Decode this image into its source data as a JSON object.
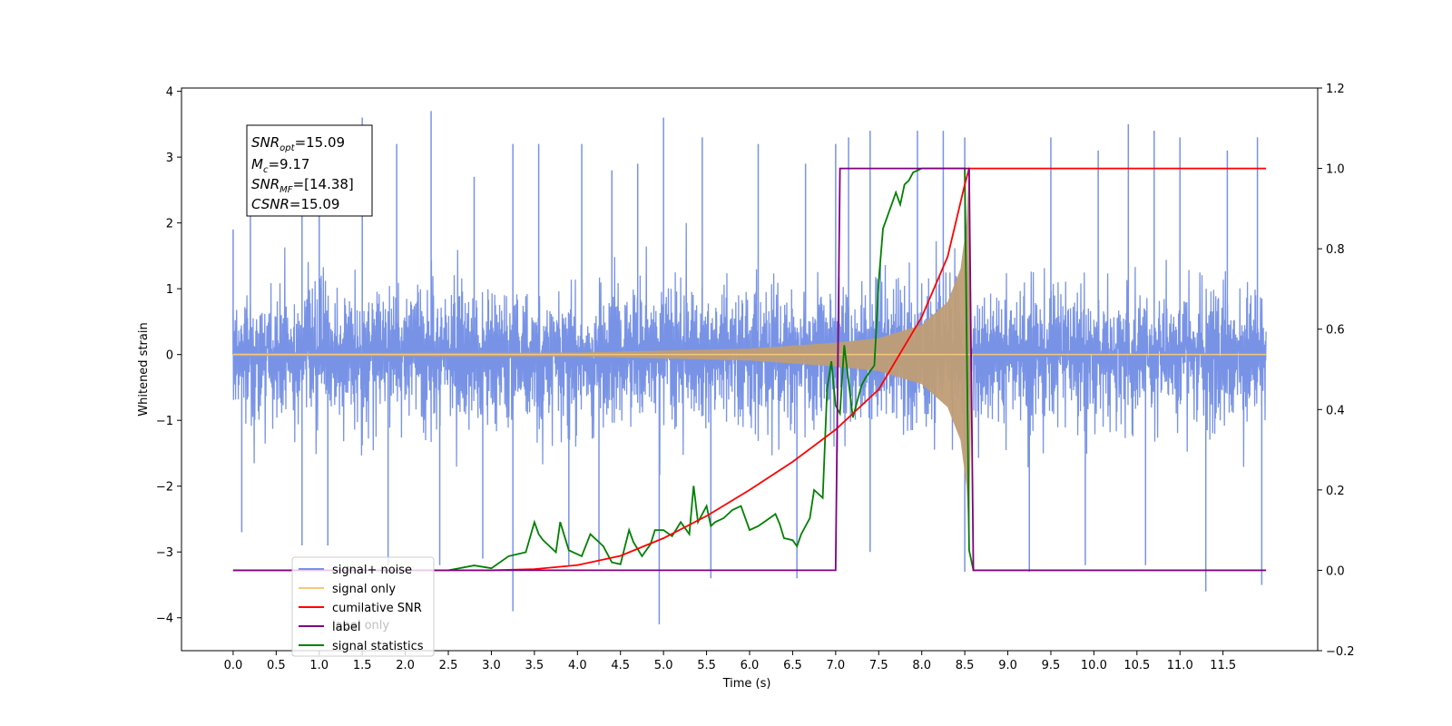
{
  "chart_data": {
    "type": "line",
    "xlabel": "Time (s)",
    "ylabel": "Whitened strain",
    "xlim": [
      -0.6,
      12.6
    ],
    "ylim": [
      -4.5,
      4.05
    ],
    "y2lim": [
      -0.2,
      1.2
    ],
    "x_ticks": [
      "0.0",
      "0.5",
      "1.0",
      "1.5",
      "2.0",
      "2.5",
      "3.0",
      "3.5",
      "4.0",
      "4.5",
      "5.0",
      "5.5",
      "6.0",
      "6.5",
      "7.0",
      "7.5",
      "8.0",
      "8.5",
      "9.0",
      "9.5",
      "10.0",
      "10.5",
      "11.0",
      "11.5"
    ],
    "y_ticks": [
      4,
      3,
      2,
      1,
      0,
      -1,
      -2,
      -3,
      -4
    ],
    "y2_ticks": [
      "1.2",
      "1.0",
      "0.8",
      "0.6",
      "0.4",
      "0.2",
      "0.0",
      "−0.2"
    ],
    "grid": false,
    "legend_position": "lower-left",
    "annotation": {
      "snr_opt": "=15.09",
      "mc": "=9.17",
      "snr_mf": "=[14.38]",
      "csnr": "=15.09"
    },
    "overlapped_text": "label only",
    "series": [
      {
        "name": "signal+ noise",
        "color": "#7893e6",
        "axis": "left",
        "description": "noise band ~±2 with spikes up to ±3.7 over 0–12 s",
        "spikes_top": [
          [
            0.0,
            1.9
          ],
          [
            0.2,
            2.1
          ],
          [
            0.8,
            2.9
          ],
          [
            1.0,
            2.9
          ],
          [
            1.5,
            3.6
          ],
          [
            1.9,
            3.2
          ],
          [
            2.3,
            3.7
          ],
          [
            2.8,
            2.7
          ],
          [
            3.25,
            3.2
          ],
          [
            3.55,
            3.2
          ],
          [
            4.05,
            3.2
          ],
          [
            4.4,
            2.8
          ],
          [
            4.7,
            2.9
          ],
          [
            5.0,
            3.6
          ],
          [
            5.45,
            3.3
          ],
          [
            6.1,
            3.2
          ],
          [
            6.65,
            2.9
          ],
          [
            7.0,
            3.2
          ],
          [
            7.15,
            3.3
          ],
          [
            7.4,
            3.4
          ],
          [
            7.95,
            3.4
          ],
          [
            8.25,
            3.4
          ],
          [
            8.5,
            3.3
          ],
          [
            9.5,
            3.3
          ],
          [
            10.05,
            3.1
          ],
          [
            10.4,
            3.5
          ],
          [
            10.7,
            3.4
          ],
          [
            11.0,
            3.3
          ],
          [
            11.55,
            3.1
          ],
          [
            11.9,
            3.3
          ]
        ],
        "spikes_bottom": [
          [
            0.1,
            -2.7
          ],
          [
            0.8,
            -2.9
          ],
          [
            1.1,
            -2.9
          ],
          [
            1.8,
            -3.2
          ],
          [
            2.4,
            -3.2
          ],
          [
            2.9,
            -3.1
          ],
          [
            3.25,
            -3.9
          ],
          [
            3.9,
            -3.2
          ],
          [
            4.25,
            -3.2
          ],
          [
            4.95,
            -4.1
          ],
          [
            5.55,
            -3.4
          ],
          [
            6.55,
            -3.4
          ],
          [
            7.4,
            -3.0
          ],
          [
            8.5,
            -3.3
          ],
          [
            9.25,
            -3.3
          ],
          [
            9.9,
            -3.2
          ],
          [
            10.6,
            -3.2
          ],
          [
            11.3,
            -3.6
          ],
          [
            11.95,
            -3.5
          ]
        ]
      },
      {
        "name": "signal only",
        "color": "#f5c87a",
        "axis": "left",
        "description": "chirp envelope growing until merger at 8.55 s, then zero",
        "envelope": [
          [
            0.0,
            0.02
          ],
          [
            4.0,
            0.03
          ],
          [
            5.0,
            0.06
          ],
          [
            6.0,
            0.09
          ],
          [
            7.0,
            0.18
          ],
          [
            7.5,
            0.25
          ],
          [
            8.0,
            0.45
          ],
          [
            8.3,
            0.8
          ],
          [
            8.45,
            1.3
          ],
          [
            8.52,
            2.0
          ],
          [
            8.55,
            2.9
          ],
          [
            8.58,
            0.0
          ],
          [
            12.0,
            0.0
          ]
        ]
      },
      {
        "name": "cumilative SNR",
        "color": "#ff0000",
        "axis": "right",
        "x": [
          0.0,
          3.0,
          3.5,
          4.0,
          4.5,
          5.0,
          5.5,
          6.0,
          6.5,
          7.0,
          7.5,
          8.0,
          8.3,
          8.5,
          8.55,
          12.0
        ],
        "y": [
          0.0,
          0.0,
          0.003,
          0.013,
          0.036,
          0.08,
          0.135,
          0.2,
          0.27,
          0.35,
          0.45,
          0.63,
          0.78,
          0.96,
          1.0,
          1.0
        ]
      },
      {
        "name": "label",
        "color": "#800080",
        "axis": "right",
        "x": [
          0.0,
          7.0,
          7.05,
          8.55,
          8.6,
          12.0
        ],
        "y": [
          0.0,
          0.0,
          1.0,
          1.0,
          0.0,
          0.0
        ]
      },
      {
        "name": "signal statistics",
        "color": "#008000",
        "axis": "right",
        "x": [
          0.0,
          2.5,
          2.8,
          3.0,
          3.2,
          3.4,
          3.5,
          3.55,
          3.6,
          3.75,
          3.8,
          3.9,
          4.05,
          4.15,
          4.3,
          4.4,
          4.5,
          4.6,
          4.65,
          4.75,
          4.85,
          4.9,
          5.0,
          5.1,
          5.2,
          5.3,
          5.35,
          5.4,
          5.5,
          5.55,
          5.6,
          5.7,
          5.8,
          5.9,
          6.0,
          6.1,
          6.2,
          6.3,
          6.35,
          6.4,
          6.5,
          6.55,
          6.6,
          6.7,
          6.75,
          6.85,
          6.9,
          6.95,
          7.0,
          7.05,
          7.1,
          7.2,
          7.3,
          7.35,
          7.45,
          7.5,
          7.55,
          7.65,
          7.7,
          7.75,
          7.8,
          7.85,
          7.9,
          8.0,
          8.1,
          8.5,
          8.55,
          8.6,
          12.0
        ],
        "y": [
          0.0,
          0.0,
          0.012,
          0.005,
          0.035,
          0.045,
          0.12,
          0.09,
          0.075,
          0.045,
          0.12,
          0.05,
          0.035,
          0.09,
          0.06,
          0.02,
          0.015,
          0.1,
          0.07,
          0.035,
          0.065,
          0.1,
          0.1,
          0.085,
          0.12,
          0.09,
          0.21,
          0.12,
          0.16,
          0.11,
          0.12,
          0.13,
          0.15,
          0.16,
          0.1,
          0.11,
          0.125,
          0.14,
          0.115,
          0.08,
          0.075,
          0.06,
          0.09,
          0.13,
          0.2,
          0.18,
          0.45,
          0.52,
          0.41,
          0.39,
          0.56,
          0.38,
          0.46,
          0.48,
          0.51,
          0.72,
          0.85,
          0.91,
          0.94,
          0.91,
          0.96,
          0.97,
          0.99,
          1.0,
          1.0,
          1.0,
          0.05,
          0.0,
          0.0
        ]
      }
    ]
  }
}
